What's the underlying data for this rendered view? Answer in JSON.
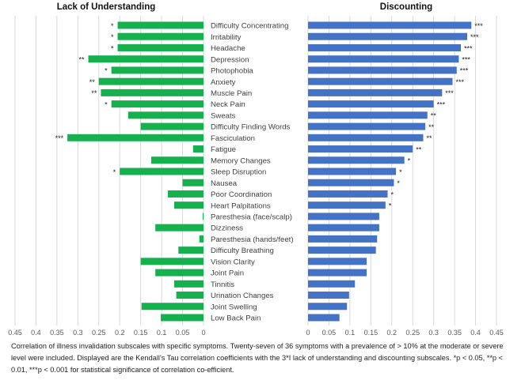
{
  "chart_data": [
    {
      "type": "bar",
      "orientation": "horizontal",
      "direction": "reversed",
      "title": "Lack of Understanding",
      "color": "#16b04f",
      "xlim": [
        0,
        0.45
      ],
      "xticks": [
        "0.45",
        "0.4",
        "0.35",
        "0.3",
        "0.25",
        "0.2",
        "0.15",
        "0.1",
        "0.05",
        "0"
      ],
      "grid": true,
      "categories": [
        "Difficulty Concentrating",
        "Irritability",
        "Headache",
        "Depression",
        "Photophobia",
        "Anxiety",
        "Muscle Pain",
        "Neck Pain",
        "Sweats",
        "Difficulty Finding Words",
        "Fasciculation",
        "Fatigue",
        "Memory Changes",
        "Sleep Disruption",
        "Nausea",
        "Poor Coordination",
        "Heart Palpitations",
        "Paresthesia (face/scalp)",
        "Dizziness",
        "Paresthesia (hands/feet)",
        "Difficulty Breathing",
        "Vision Clarity",
        "Joint Pain",
        "Tinnitis",
        "Urination Changes",
        "Joint Swelling",
        "Low Back Pain"
      ],
      "values": [
        0.205,
        0.205,
        0.205,
        0.275,
        0.22,
        0.25,
        0.245,
        0.22,
        0.18,
        0.15,
        0.325,
        0.025,
        0.125,
        0.2,
        0.05,
        0.085,
        0.07,
        0.002,
        0.115,
        0.01,
        0.06,
        0.15,
        0.115,
        0.07,
        0.065,
        0.148,
        0.102
      ],
      "significance": [
        "*",
        "*",
        "*",
        "**",
        "*",
        "**",
        "**",
        "*",
        "",
        "",
        "***",
        "",
        "",
        "*",
        "",
        "",
        "",
        "",
        "",
        "",
        "",
        "",
        "",
        "",
        "",
        "",
        ""
      ]
    },
    {
      "type": "bar",
      "orientation": "horizontal",
      "title": "Discounting",
      "color": "#4472c4",
      "xlim": [
        0,
        0.45
      ],
      "xticks": [
        "0",
        "0.05",
        "0.1",
        "0.15",
        "0.2",
        "0.25",
        "0.3",
        "0.35",
        "0.4",
        "0.45"
      ],
      "grid": true,
      "values": [
        0.39,
        0.38,
        0.365,
        0.36,
        0.355,
        0.345,
        0.32,
        0.3,
        0.285,
        0.28,
        0.275,
        0.25,
        0.23,
        0.21,
        0.205,
        0.19,
        0.185,
        0.17,
        0.17,
        0.165,
        0.162,
        0.14,
        0.14,
        0.112,
        0.098,
        0.093,
        0.075
      ],
      "significance": [
        "***",
        "***",
        "***",
        "***",
        "***",
        "***",
        "***",
        "***",
        "**",
        "**",
        "**",
        "**",
        "*",
        "*",
        "*",
        "*",
        "*",
        "",
        "",
        "",
        "",
        "",
        "",
        "",
        "",
        "",
        ""
      ]
    }
  ],
  "caption": "Correlation of illness invalidation subscales with specific symptoms. Twenty-seven of 36 symptoms with a prevalence of > 10% at the moderate or severe level were included. Displayed are the Kendall's Tau correlation coefficients with the 3*I lack of understanding and discounting subscales. *p < 0.05, **p < 0.01, ***p < 0.001 for statistical significance of correlation co-efficient."
}
